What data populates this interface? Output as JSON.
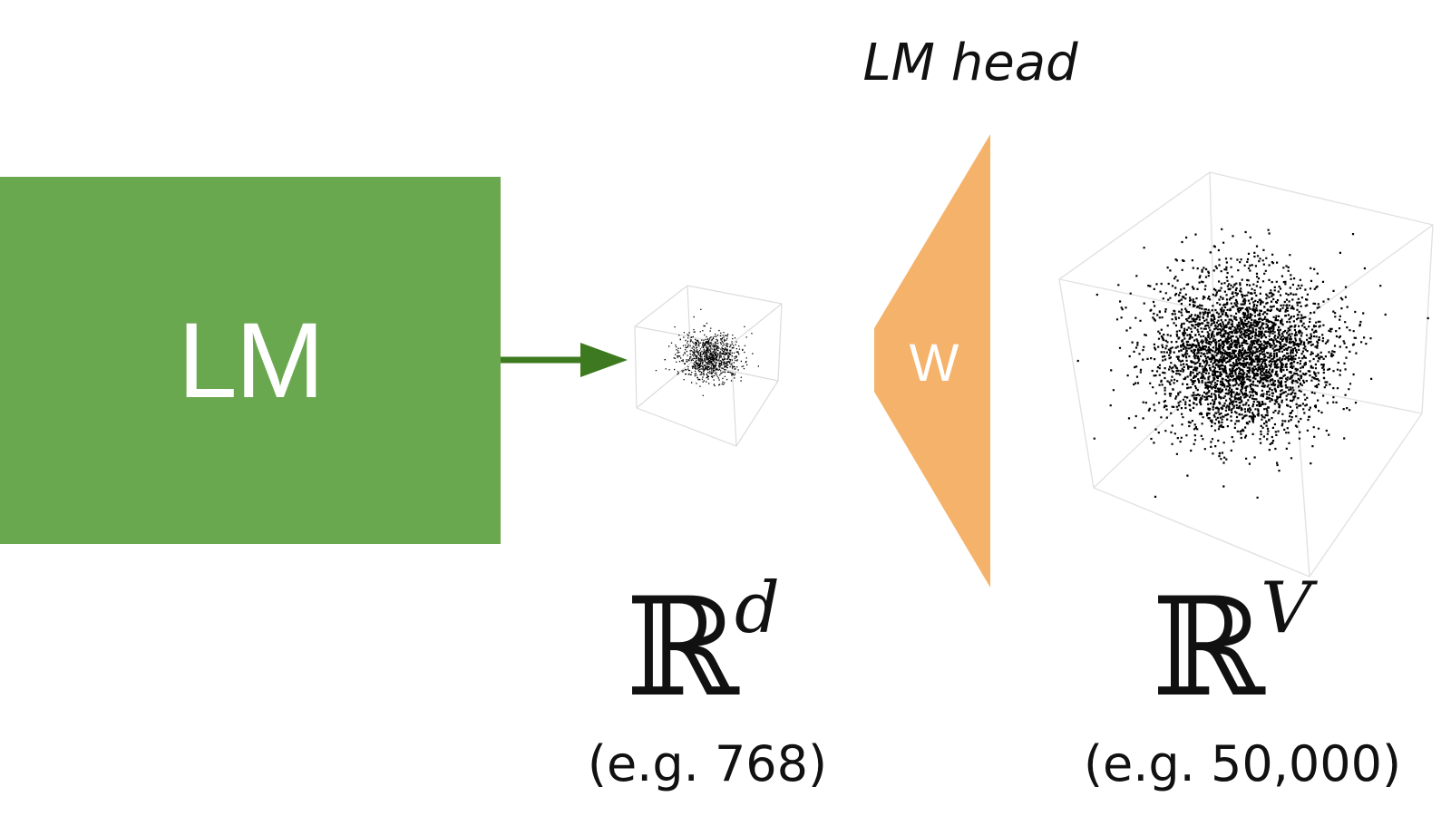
{
  "model": {
    "label": "LM",
    "color": "#6aa84f",
    "arrow_color": "#3d7a1f"
  },
  "head": {
    "title": "LM head",
    "weight_label": "W",
    "color": "#f5b26b"
  },
  "hidden_space": {
    "symbol": "ℝ",
    "exponent": "d",
    "example": "(e.g. 768)"
  },
  "vocab_space": {
    "symbol": "ℝ",
    "exponent": "V",
    "example": "(e.g. 50,000)"
  }
}
